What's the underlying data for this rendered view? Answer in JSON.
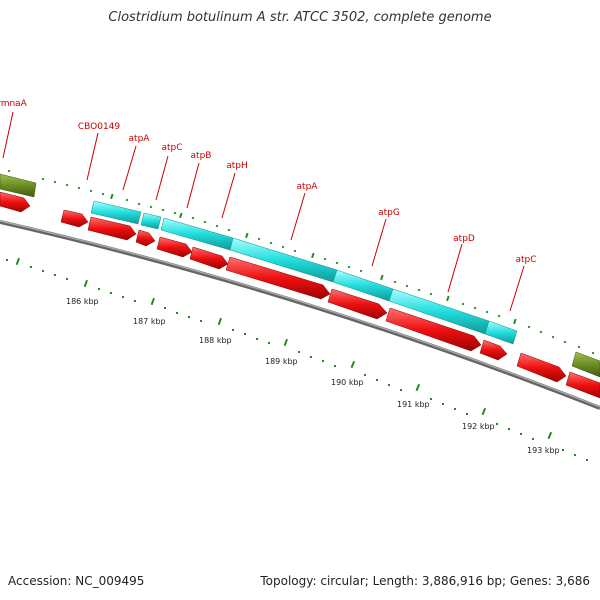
{
  "title": "Clostridium botulinum A str. ATCC 3502, complete genome",
  "footer": {
    "accession": "Accession: NC_009495",
    "summary": "Topology: circular; Length: 3,886,916 bp; Genes: 3,686"
  },
  "colors": {
    "cds": "#ee1111",
    "gene": "#22dddd",
    "other": "#6b8e23",
    "backbone": "#888888",
    "label": "#cc0000",
    "tick": "#228b22"
  },
  "gene_labels": [
    {
      "name": "rmnaA"
    },
    {
      "name": "CBO0149"
    },
    {
      "name": "atpA"
    },
    {
      "name": "atpC"
    },
    {
      "name": "atpB"
    },
    {
      "name": "atpH"
    },
    {
      "name": "atpA"
    },
    {
      "name": "atpG"
    },
    {
      "name": "atpD"
    },
    {
      "name": "atpC"
    }
  ],
  "axis_labels": [
    "186 kbp",
    "187 kbp",
    "188 kbp",
    "189 kbp",
    "190 kbp",
    "191 kbp",
    "192 kbp",
    "193 kbp"
  ]
}
